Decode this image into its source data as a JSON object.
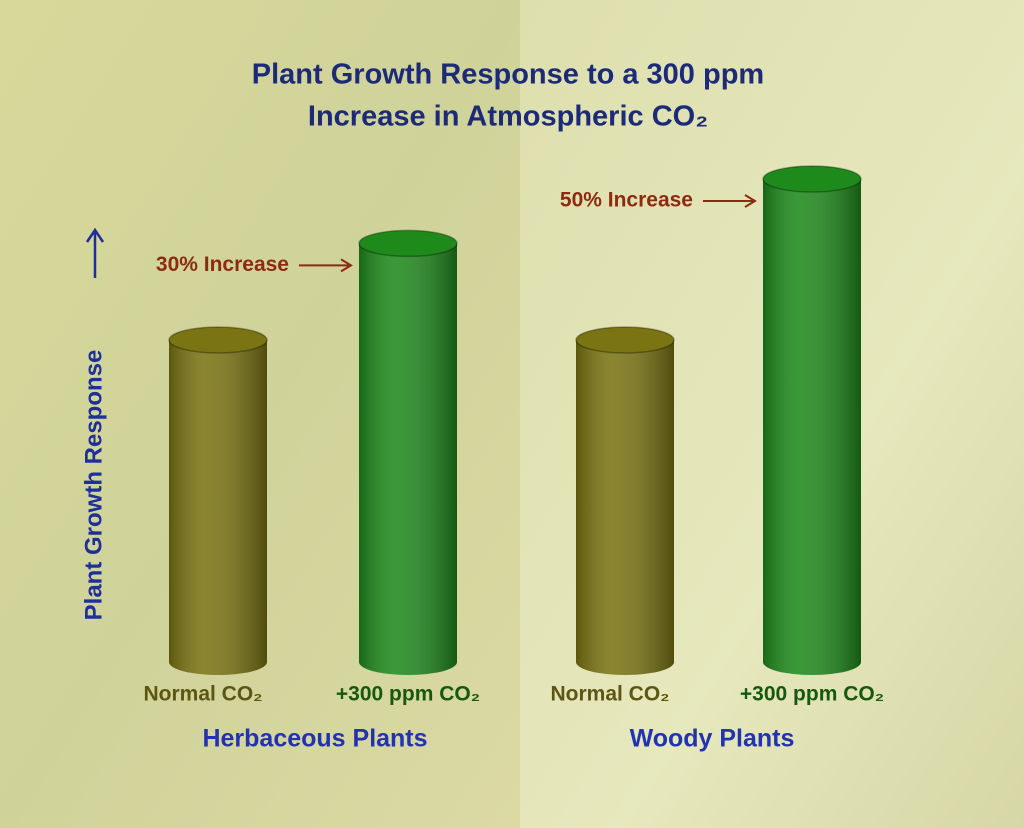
{
  "chart_data": {
    "type": "bar",
    "title": [
      "Plant Growth Response to a 300 ppm",
      "Increase in Atmospheric CO₂"
    ],
    "y_label": "Plant Growth Response",
    "groups": [
      "Herbaceous Plants",
      "Woody Plants"
    ],
    "series": [
      {
        "name": "Normal CO₂",
        "color": "#7a7412",
        "values": [
          100,
          100
        ]
      },
      {
        "name": "+300 ppm CO₂",
        "color": "#1f8a1c",
        "values": [
          130,
          150
        ]
      }
    ],
    "annotations": [
      "30% Increase",
      "50% Increase"
    ]
  }
}
